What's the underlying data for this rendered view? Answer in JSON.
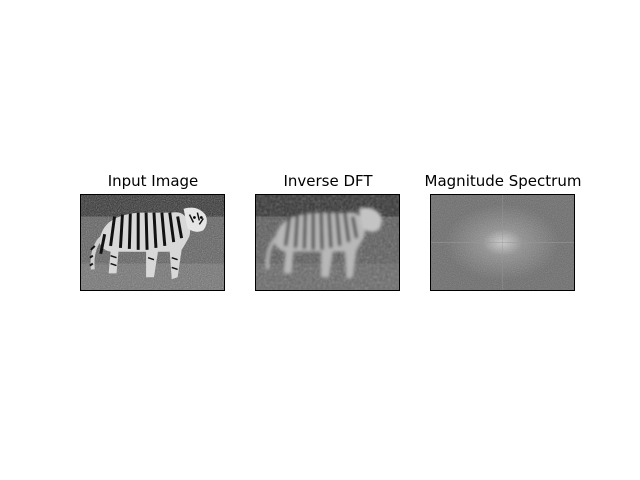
{
  "panels": [
    {
      "title": "Input Image",
      "content": "tiger photograph (grayscale)"
    },
    {
      "title": "Inverse DFT",
      "content": "blurred tiger reconstruction (grayscale)"
    },
    {
      "title": "Magnitude Spectrum",
      "content": "fourier magnitude spectrum (grayscale)"
    }
  ],
  "colors": {
    "background": "#ffffff",
    "axis_border": "#000000",
    "title_text": "#000000"
  }
}
